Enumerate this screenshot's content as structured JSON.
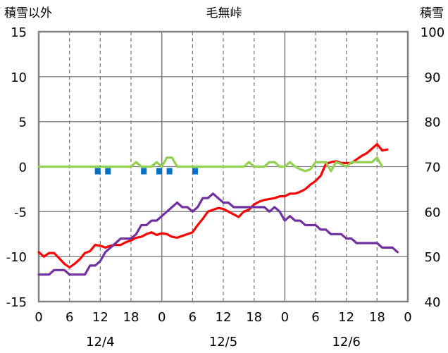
{
  "chart_data": {
    "type": "line",
    "title": "毛無峠",
    "ylabel_left": "積雪以外",
    "ylabel_right": "積雪",
    "y_left_range": [
      -15,
      15
    ],
    "y_left_ticks": [
      "15",
      "10",
      "5",
      "0",
      "-5",
      "-10",
      "-15"
    ],
    "y_right_range": [
      40,
      100
    ],
    "y_right_ticks": [
      "100",
      "90",
      "80",
      "70",
      "60",
      "50",
      "40"
    ],
    "x_range_hours": [
      0,
      72
    ],
    "x_ticks": [
      "0",
      "6",
      "12",
      "18",
      "0",
      "6",
      "12",
      "18",
      "0",
      "6",
      "12",
      "18",
      "0"
    ],
    "date_labels": [
      "12/4",
      "12/5",
      "12/6"
    ],
    "grid": true,
    "series": [
      {
        "color": "#ff0000",
        "axis": "left",
        "values": [
          [
            0,
            -9.5
          ],
          [
            1,
            -10
          ],
          [
            2,
            -9.6
          ],
          [
            3,
            -9.6
          ],
          [
            4,
            -10.2
          ],
          [
            5,
            -10.8
          ],
          [
            6,
            -11.2
          ],
          [
            7,
            -10.8
          ],
          [
            8,
            -10.3
          ],
          [
            9,
            -9.6
          ],
          [
            10,
            -9.4
          ],
          [
            11,
            -8.7
          ],
          [
            12,
            -8.8
          ],
          [
            13,
            -9
          ],
          [
            14,
            -8.8
          ],
          [
            15,
            -8.7
          ],
          [
            16,
            -8.7
          ],
          [
            17,
            -8.4
          ],
          [
            18,
            -8.2
          ],
          [
            19,
            -7.9
          ],
          [
            20,
            -7.8
          ],
          [
            21,
            -7.5
          ],
          [
            22,
            -7.3
          ],
          [
            23,
            -7.6
          ],
          [
            24,
            -7.4
          ],
          [
            25,
            -7.5
          ],
          [
            26,
            -7.8
          ],
          [
            27,
            -7.9
          ],
          [
            28,
            -7.7
          ],
          [
            29,
            -7.5
          ],
          [
            30,
            -7.3
          ],
          [
            31,
            -6.5
          ],
          [
            32,
            -5.8
          ],
          [
            33,
            -5
          ],
          [
            34,
            -4.8
          ],
          [
            35,
            -4.6
          ],
          [
            36,
            -4.7
          ],
          [
            37,
            -5
          ],
          [
            38,
            -5.3
          ],
          [
            39,
            -5.6
          ],
          [
            40,
            -5
          ],
          [
            41,
            -4.8
          ],
          [
            42,
            -4.2
          ],
          [
            43,
            -3.9
          ],
          [
            44,
            -3.7
          ],
          [
            45,
            -3.6
          ],
          [
            46,
            -3.5
          ],
          [
            47,
            -3.3
          ],
          [
            48,
            -3.3
          ],
          [
            49,
            -3
          ],
          [
            50,
            -3
          ],
          [
            51,
            -2.8
          ],
          [
            52,
            -2.5
          ],
          [
            53,
            -2
          ],
          [
            54,
            -1.6
          ],
          [
            55,
            -1
          ],
          [
            56,
            0.3
          ],
          [
            57,
            0.5
          ],
          [
            58,
            0.6
          ],
          [
            59,
            0.4
          ],
          [
            60,
            0.4
          ],
          [
            61,
            0.4
          ],
          [
            62,
            0.8
          ],
          [
            63,
            1.2
          ],
          [
            64,
            1.5
          ],
          [
            65,
            2
          ],
          [
            66,
            2.5
          ],
          [
            67,
            1.8
          ],
          [
            68,
            1.9
          ]
        ]
      },
      {
        "color": "#7030a0",
        "axis": "right",
        "values": [
          [
            0,
            46
          ],
          [
            1,
            46
          ],
          [
            2,
            46
          ],
          [
            3,
            47
          ],
          [
            4,
            47
          ],
          [
            5,
            47
          ],
          [
            6,
            46
          ],
          [
            7,
            46
          ],
          [
            8,
            46
          ],
          [
            9,
            46
          ],
          [
            10,
            48
          ],
          [
            11,
            48
          ],
          [
            12,
            49
          ],
          [
            13,
            51
          ],
          [
            14,
            52
          ],
          [
            15,
            53
          ],
          [
            16,
            54
          ],
          [
            17,
            54
          ],
          [
            18,
            54
          ],
          [
            19,
            55
          ],
          [
            20,
            57
          ],
          [
            21,
            57
          ],
          [
            22,
            58
          ],
          [
            23,
            58
          ],
          [
            24,
            59
          ],
          [
            25,
            60
          ],
          [
            26,
            61
          ],
          [
            27,
            62
          ],
          [
            28,
            61
          ],
          [
            29,
            61
          ],
          [
            30,
            60
          ],
          [
            31,
            61
          ],
          [
            32,
            63
          ],
          [
            33,
            63
          ],
          [
            34,
            64
          ],
          [
            35,
            63
          ],
          [
            36,
            62
          ],
          [
            37,
            62
          ],
          [
            38,
            61
          ],
          [
            39,
            61
          ],
          [
            40,
            61
          ],
          [
            41,
            61
          ],
          [
            42,
            61
          ],
          [
            43,
            61
          ],
          [
            44,
            61
          ],
          [
            45,
            60
          ],
          [
            46,
            61
          ],
          [
            47,
            60
          ],
          [
            48,
            58
          ],
          [
            49,
            59
          ],
          [
            50,
            58
          ],
          [
            51,
            58
          ],
          [
            52,
            57
          ],
          [
            53,
            57
          ],
          [
            54,
            57
          ],
          [
            55,
            56
          ],
          [
            56,
            56
          ],
          [
            57,
            55
          ],
          [
            58,
            55
          ],
          [
            59,
            55
          ],
          [
            60,
            54
          ],
          [
            61,
            54
          ],
          [
            62,
            53
          ],
          [
            63,
            53
          ],
          [
            64,
            53
          ],
          [
            65,
            53
          ],
          [
            66,
            53
          ],
          [
            67,
            52
          ],
          [
            68,
            52
          ],
          [
            69,
            52
          ],
          [
            70,
            51
          ]
        ]
      },
      {
        "color": "#92d050",
        "axis": "left",
        "values": [
          [
            0,
            0
          ],
          [
            18,
            0
          ],
          [
            19,
            0.5
          ],
          [
            20,
            0
          ],
          [
            22,
            0
          ],
          [
            23,
            0.5
          ],
          [
            24,
            0
          ],
          [
            25,
            1
          ],
          [
            26,
            1
          ],
          [
            27,
            0
          ],
          [
            40,
            0
          ],
          [
            41,
            0.5
          ],
          [
            42,
            0
          ],
          [
            44,
            0
          ],
          [
            45,
            0.5
          ],
          [
            46,
            0.5
          ],
          [
            47,
            0
          ],
          [
            48,
            0
          ],
          [
            49,
            0.5
          ],
          [
            50,
            0
          ],
          [
            51,
            -0.3
          ],
          [
            52,
            -0.5
          ],
          [
            53,
            -0.3
          ],
          [
            54,
            0.5
          ],
          [
            55,
            0.5
          ],
          [
            56,
            0.5
          ],
          [
            57,
            -0.5
          ],
          [
            58,
            0.5
          ],
          [
            59,
            0.3
          ],
          [
            60,
            0
          ],
          [
            61,
            0.5
          ],
          [
            62,
            0.5
          ],
          [
            63,
            0.5
          ],
          [
            64,
            0.5
          ],
          [
            65,
            0.5
          ],
          [
            66,
            1
          ],
          [
            67,
            0
          ]
        ]
      },
      {
        "color": "#0070c0",
        "axis": "left",
        "type": "bar",
        "values": [
          [
            11.5,
            -0.3
          ],
          [
            13.5,
            -0.3
          ],
          [
            20.5,
            -0.3
          ],
          [
            23.5,
            -0.3
          ],
          [
            25.5,
            -0.3
          ],
          [
            30.5,
            -0.3
          ]
        ]
      }
    ]
  }
}
